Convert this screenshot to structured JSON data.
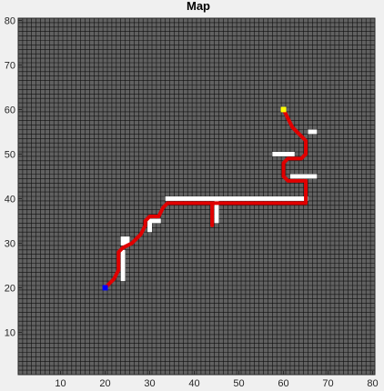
{
  "chart_data": {
    "type": "heatmap",
    "title": "Map",
    "xlabel": "",
    "ylabel": "",
    "xlim": [
      0.5,
      80.5
    ],
    "ylim": [
      0.5,
      80.5
    ],
    "xticks": [
      10,
      20,
      30,
      40,
      50,
      60,
      70,
      80
    ],
    "yticks": [
      10,
      20,
      30,
      40,
      50,
      60,
      70,
      80
    ],
    "grid": "on",
    "colors": {
      "free_cell": "#616161",
      "grid_line": "#000000",
      "obstacle": "#ffffff",
      "path": "#e00000",
      "start": "#0000ff",
      "goal": "#ffff00",
      "figure_bg": "#f0f0f0"
    },
    "start": [
      20,
      20
    ],
    "goal": [
      60,
      60
    ],
    "obstacles": [
      [
        [
          24,
          22
        ],
        [
          24,
          28
        ]
      ],
      [
        [
          24,
          30
        ],
        [
          25,
          30
        ]
      ],
      [
        [
          24,
          31
        ],
        [
          25,
          31
        ]
      ],
      [
        [
          30,
          33
        ],
        [
          30,
          35
        ]
      ],
      [
        [
          31,
          35
        ],
        [
          32,
          35
        ]
      ],
      [
        [
          34,
          40
        ],
        [
          65,
          40
        ]
      ],
      [
        [
          45,
          35
        ],
        [
          45,
          39
        ]
      ],
      [
        [
          58,
          50
        ],
        [
          62,
          50
        ]
      ],
      [
        [
          62,
          45
        ],
        [
          67,
          45
        ]
      ],
      [
        [
          66,
          55
        ],
        [
          67,
          55
        ]
      ]
    ],
    "path": [
      [
        20,
        20
      ],
      [
        22,
        22
      ],
      [
        23,
        24
      ],
      [
        23,
        28
      ],
      [
        24,
        29
      ],
      [
        26,
        30
      ],
      [
        28,
        32
      ],
      [
        29,
        34
      ],
      [
        29,
        35
      ],
      [
        30,
        36
      ],
      [
        32,
        36
      ],
      [
        33,
        38
      ],
      [
        34,
        39
      ],
      [
        44,
        39
      ],
      [
        44,
        34
      ],
      [
        44,
        39
      ],
      [
        65,
        39
      ],
      [
        65,
        44
      ],
      [
        61,
        44
      ],
      [
        60,
        45
      ],
      [
        60,
        48
      ],
      [
        61,
        49
      ],
      [
        64,
        49
      ],
      [
        65,
        50
      ],
      [
        65,
        53
      ],
      [
        64,
        54
      ],
      [
        62,
        56
      ],
      [
        60,
        60
      ]
    ]
  }
}
